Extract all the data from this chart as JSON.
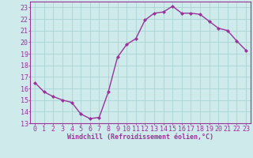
{
  "x": [
    0,
    1,
    2,
    3,
    4,
    5,
    6,
    7,
    8,
    9,
    10,
    11,
    12,
    13,
    14,
    15,
    16,
    17,
    18,
    19,
    20,
    21,
    22,
    23
  ],
  "y": [
    16.5,
    15.7,
    15.3,
    15.0,
    14.8,
    13.8,
    13.4,
    13.5,
    15.7,
    18.7,
    19.8,
    20.3,
    21.9,
    22.5,
    22.6,
    23.1,
    22.5,
    22.5,
    22.4,
    21.8,
    21.2,
    21.0,
    20.1,
    19.3
  ],
  "line_color": "#993399",
  "marker": "D",
  "marker_size": 2.0,
  "bg_color": "#ceeaea",
  "grid_color": "#aad4d4",
  "xlabel": "Windchill (Refroidissement éolien,°C)",
  "ylim": [
    13,
    23.5
  ],
  "yticks": [
    13,
    14,
    15,
    16,
    17,
    18,
    19,
    20,
    21,
    22,
    23
  ],
  "xlim": [
    -0.5,
    23.5
  ],
  "xticks": [
    0,
    1,
    2,
    3,
    4,
    5,
    6,
    7,
    8,
    9,
    10,
    11,
    12,
    13,
    14,
    15,
    16,
    17,
    18,
    19,
    20,
    21,
    22,
    23
  ],
  "xlabel_fontsize": 6.0,
  "tick_fontsize": 6.0,
  "linewidth": 1.0
}
